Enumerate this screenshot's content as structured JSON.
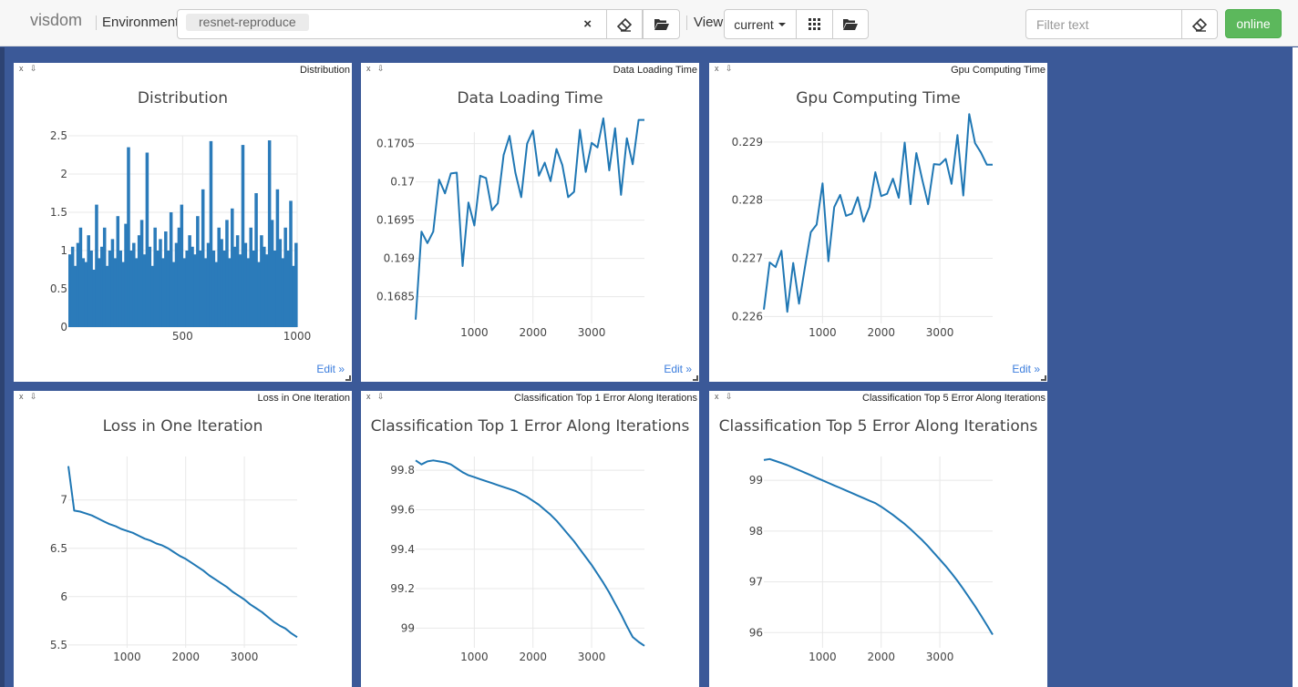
{
  "navbar": {
    "brand": "visdom",
    "env_label": "Environment",
    "env_tag": "resnet-reproduce",
    "env_clear": "×",
    "view_label": "View",
    "view_select": "current",
    "filter_placeholder": "Filter text",
    "status": "online"
  },
  "icons": {
    "clear": "eraser-icon",
    "open": "folder-open-icon",
    "grid": "grid-icon",
    "close": "close-icon",
    "download": "download-icon"
  },
  "colors": {
    "line": "#1f77b4",
    "bar": "#2b7bba",
    "status": "#5cb85c",
    "background": "#3b5998",
    "link": "#3b7ddd"
  },
  "pane_controls": {
    "close": "x",
    "download": "⇩",
    "edit": "Edit »"
  },
  "chart_data": [
    {
      "type": "bar",
      "window": "Distribution",
      "title": "Distribution",
      "xlim": [
        1,
        1000
      ],
      "ylim": [
        0,
        2.5
      ],
      "xticks": [
        500,
        1000
      ],
      "yticks": [
        0,
        0.5,
        1,
        1.5,
        2,
        2.5
      ],
      "notes": "about 1000 bars of one series, mostly between 0.7 and 1.3 with spikes up to about 2.45",
      "values": [
        0.95,
        1.05,
        0.8,
        1.1,
        1.3,
        0.9,
        0.85,
        1.2,
        1.0,
        0.75,
        1.6,
        0.9,
        1.05,
        1.3,
        0.8,
        1.0,
        1.15,
        0.9,
        1.45,
        1.0,
        0.85,
        1.35,
        2.35,
        1.0,
        1.1,
        0.9,
        1.2,
        1.4,
        0.95,
        2.28,
        1.05,
        0.8,
        1.3,
        1.0,
        1.15,
        0.9,
        1.25,
        1.0,
        1.5,
        0.85,
        1.1,
        1.3,
        1.6,
        0.9,
        1.0,
        1.2,
        1.05,
        0.95,
        1.45,
        1.0,
        1.8,
        0.9,
        1.1,
        2.43,
        1.0,
        0.85,
        1.3,
        1.15,
        1.0,
        1.4,
        0.9,
        1.55,
        1.05,
        1.2,
        0.95,
        2.38,
        1.1,
        0.9,
        1.3,
        1.0,
        1.75,
        0.85,
        1.2,
        1.05,
        0.95,
        2.44,
        1.4,
        1.0,
        1.8,
        1.15,
        0.9,
        1.3,
        1.0,
        1.65,
        0.8,
        1.1
      ]
    },
    {
      "type": "line",
      "window": "Data Loading Time",
      "title": "Data Loading Time",
      "xlim": [
        0,
        3900
      ],
      "ylim": [
        0.16815,
        0.17065
      ],
      "xticks": [
        1000,
        2000,
        3000
      ],
      "yticks": [
        0.1685,
        0.169,
        0.1695,
        0.17,
        0.1705
      ],
      "x": [
        0,
        100,
        200,
        300,
        400,
        500,
        600,
        700,
        800,
        900,
        1000,
        1100,
        1200,
        1300,
        1400,
        1500,
        1600,
        1700,
        1800,
        1900,
        2000,
        2100,
        2200,
        2300,
        2400,
        2500,
        2600,
        2700,
        2800,
        2900,
        3000,
        3100,
        3200,
        3300,
        3400,
        3500,
        3600,
        3700,
        3800,
        3900
      ],
      "y": [
        0.1682,
        0.16935,
        0.1692,
        0.16935,
        0.17003,
        0.16985,
        0.17011,
        0.17012,
        0.1689,
        0.16973,
        0.16943,
        0.17008,
        0.17005,
        0.16963,
        0.16972,
        0.17035,
        0.1706,
        0.17012,
        0.1698,
        0.1705,
        0.17067,
        0.17008,
        0.17025,
        0.17001,
        0.17043,
        0.17022,
        0.1698,
        0.16987,
        0.17068,
        0.17013,
        0.17051,
        0.17045,
        0.17083,
        0.17015,
        0.1707,
        0.16983,
        0.17057,
        0.17023,
        0.17081,
        0.17081
      ]
    },
    {
      "type": "line",
      "window": "Gpu Computing Time",
      "title": "Gpu Computing Time",
      "xlim": [
        0,
        3900
      ],
      "ylim": [
        0.22588,
        0.22917
      ],
      "xticks": [
        1000,
        2000,
        3000
      ],
      "yticks": [
        0.226,
        0.227,
        0.228,
        0.229
      ],
      "x": [
        0,
        100,
        200,
        300,
        400,
        500,
        600,
        700,
        800,
        900,
        1000,
        1100,
        1200,
        1300,
        1400,
        1500,
        1600,
        1700,
        1800,
        1900,
        2000,
        2100,
        2200,
        2300,
        2400,
        2500,
        2600,
        2700,
        2800,
        2900,
        3000,
        3100,
        3200,
        3300,
        3400,
        3500,
        3600,
        3700,
        3800,
        3900
      ],
      "y": [
        0.22612,
        0.22693,
        0.22685,
        0.22713,
        0.22608,
        0.22692,
        0.22622,
        0.22685,
        0.22745,
        0.22758,
        0.22829,
        0.22695,
        0.22788,
        0.22809,
        0.22773,
        0.22777,
        0.22805,
        0.22763,
        0.22788,
        0.22848,
        0.22807,
        0.22811,
        0.22837,
        0.22804,
        0.22899,
        0.22793,
        0.22881,
        0.22835,
        0.22793,
        0.22862,
        0.22861,
        0.22871,
        0.22828,
        0.22912,
        0.22808,
        0.22948,
        0.22898,
        0.22882,
        0.22861,
        0.22861
      ]
    },
    {
      "type": "line",
      "window": "Loss in One Iteration",
      "title": "Loss in One Iteration",
      "xlim": [
        0,
        3900
      ],
      "ylim": [
        5.47,
        7.45
      ],
      "xticks": [
        1000,
        2000,
        3000
      ],
      "yticks": [
        5.5,
        6,
        6.5,
        7
      ],
      "x": [
        0,
        100,
        200,
        300,
        400,
        500,
        600,
        700,
        800,
        900,
        1000,
        1100,
        1200,
        1300,
        1400,
        1500,
        1600,
        1700,
        1800,
        1900,
        2000,
        2100,
        2200,
        2300,
        2400,
        2500,
        2600,
        2700,
        2800,
        2900,
        3000,
        3100,
        3200,
        3300,
        3400,
        3500,
        3600,
        3700,
        3800,
        3900
      ],
      "y": [
        7.35,
        6.89,
        6.88,
        6.86,
        6.84,
        6.81,
        6.78,
        6.75,
        6.73,
        6.7,
        6.68,
        6.66,
        6.63,
        6.6,
        6.58,
        6.55,
        6.53,
        6.5,
        6.46,
        6.42,
        6.39,
        6.35,
        6.31,
        6.27,
        6.22,
        6.18,
        6.14,
        6.1,
        6.05,
        6.01,
        5.97,
        5.92,
        5.88,
        5.84,
        5.79,
        5.74,
        5.7,
        5.67,
        5.62,
        5.58
      ]
    },
    {
      "type": "line",
      "window": "Classification Top 1 Error Along Iterations",
      "title": "Classification Top 1 Error Along Iterations",
      "xlim": [
        0,
        3900
      ],
      "ylim": [
        98.9,
        99.87
      ],
      "xticks": [
        1000,
        2000,
        3000
      ],
      "yticks": [
        99,
        99.2,
        99.4,
        99.6,
        99.8
      ],
      "x": [
        0,
        100,
        200,
        300,
        400,
        500,
        600,
        700,
        800,
        900,
        1000,
        1100,
        1200,
        1300,
        1400,
        1500,
        1600,
        1700,
        1800,
        1900,
        2000,
        2100,
        2200,
        2300,
        2400,
        2500,
        2600,
        2700,
        2800,
        2900,
        3000,
        3100,
        3200,
        3300,
        3400,
        3500,
        3600,
        3700,
        3800,
        3900
      ],
      "y": [
        99.85,
        99.83,
        99.845,
        99.85,
        99.845,
        99.84,
        99.83,
        99.81,
        99.79,
        99.775,
        99.765,
        99.755,
        99.745,
        99.735,
        99.725,
        99.715,
        99.705,
        99.695,
        99.68,
        99.665,
        99.645,
        99.625,
        99.6,
        99.575,
        99.545,
        99.51,
        99.475,
        99.44,
        99.4,
        99.36,
        99.32,
        99.275,
        99.23,
        99.18,
        99.125,
        99.07,
        99.01,
        98.955,
        98.93,
        98.91
      ]
    },
    {
      "type": "line",
      "window": "Classification Top 5 Error Along Iterations",
      "title": "Classification Top 5 Error Along Iterations",
      "xlim": [
        0,
        3900
      ],
      "ylim": [
        95.7,
        99.47
      ],
      "xticks": [
        1000,
        2000,
        3000
      ],
      "yticks": [
        96,
        97,
        98,
        99
      ],
      "x": [
        0,
        100,
        200,
        300,
        400,
        500,
        600,
        700,
        800,
        900,
        1000,
        1100,
        1200,
        1300,
        1400,
        1500,
        1600,
        1700,
        1800,
        1900,
        2000,
        2100,
        2200,
        2300,
        2400,
        2500,
        2600,
        2700,
        2800,
        2900,
        3000,
        3100,
        3200,
        3300,
        3400,
        3500,
        3600,
        3700,
        3800,
        3900
      ],
      "y": [
        99.4,
        99.42,
        99.38,
        99.34,
        99.3,
        99.25,
        99.2,
        99.15,
        99.1,
        99.05,
        99.0,
        98.95,
        98.9,
        98.85,
        98.8,
        98.75,
        98.7,
        98.65,
        98.6,
        98.55,
        98.48,
        98.4,
        98.32,
        98.23,
        98.14,
        98.04,
        97.93,
        97.82,
        97.7,
        97.57,
        97.44,
        97.31,
        97.17,
        97.02,
        96.86,
        96.69,
        96.52,
        96.34,
        96.15,
        95.96
      ]
    }
  ]
}
